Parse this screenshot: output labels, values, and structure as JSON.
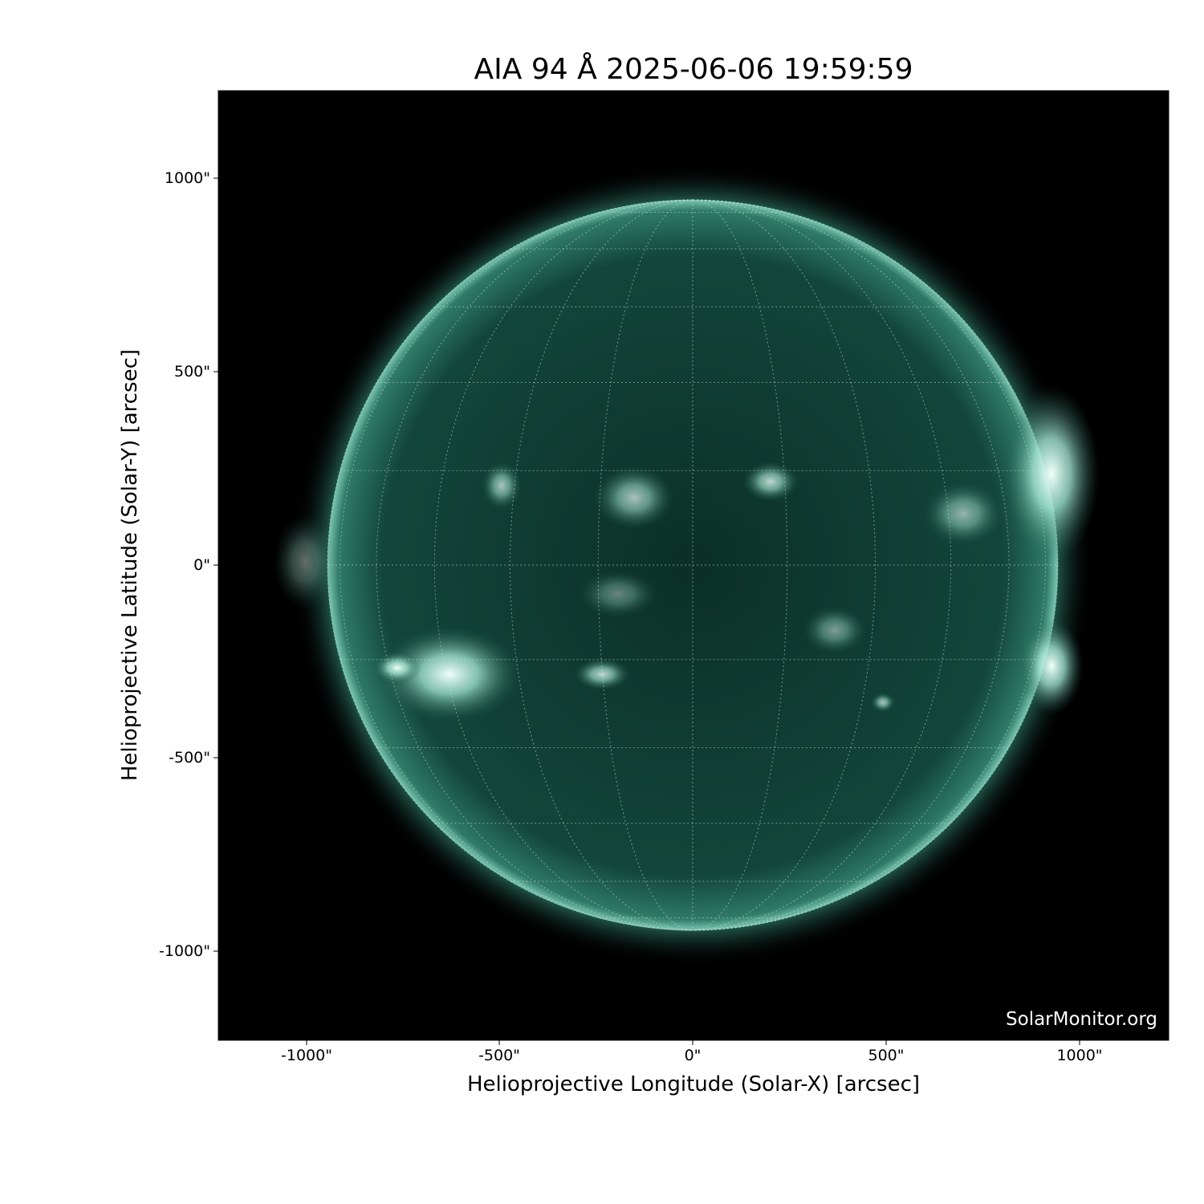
{
  "title": "AIA 94 Å 2025-06-06 19:59:59",
  "xlabel": "Helioprojective Longitude (Solar-X) [arcsec]",
  "ylabel": "Helioprojective Latitude (Solar-Y) [arcsec]",
  "x_ticks": [
    "-1000\"",
    "-500\"",
    "0\"",
    "500\"",
    "1000\""
  ],
  "y_ticks": [
    "1000\"",
    "500\"",
    "0\"",
    "-500\"",
    "-1000\""
  ],
  "watermark": "SolarMonitor.org",
  "colors": {
    "background": "#000000",
    "disk": "#0e3a30",
    "limb": "#8fd8c4",
    "bright": "#e8fff8"
  }
}
